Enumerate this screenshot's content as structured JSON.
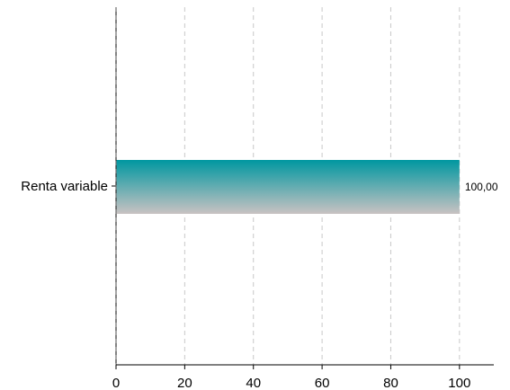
{
  "chart_data": {
    "type": "bar",
    "orientation": "horizontal",
    "title": "",
    "xlabel": "",
    "ylabel": "",
    "categories": [
      "Renta variable"
    ],
    "series": [
      {
        "values": [
          100
        ]
      }
    ],
    "data_labels": [
      "100,00"
    ],
    "xlim": [
      0,
      110
    ],
    "xticks": [
      0,
      20,
      40,
      60,
      80,
      100
    ],
    "xtick_labels": [
      "0",
      "20",
      "40",
      "60",
      "80",
      "100"
    ],
    "grid": "vertical dashed",
    "legend": "none",
    "colors": {
      "bar_top": "#0097a0",
      "bar_bottom": "#c9c2c2",
      "grid": "#c8c8c8",
      "axis": "#000000"
    }
  }
}
